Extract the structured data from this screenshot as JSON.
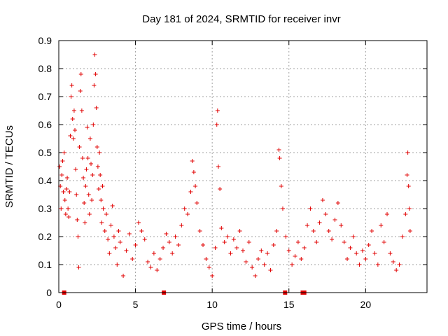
{
  "chart_data": {
    "type": "scatter",
    "title": "Day 181 of 2024, SRMTID for receiver invr",
    "xlabel": "GPS time / hours",
    "ylabel": "SRMTID / TECUs",
    "xlim": [
      0,
      24
    ],
    "ylim": [
      0,
      0.9
    ],
    "x_ticks": [
      "0",
      "5",
      "10",
      "15",
      "20"
    ],
    "x_tick_values": [
      0,
      5,
      10,
      15,
      20
    ],
    "y_ticks": [
      "0",
      "0.1",
      "0.2",
      "0.3",
      "0.4",
      "0.5",
      "0.6",
      "0.7",
      "0.8",
      "0.9"
    ],
    "y_tick_values": [
      0,
      0.1,
      0.2,
      0.3,
      0.4,
      0.5,
      0.6,
      0.7,
      0.8,
      0.9
    ],
    "grid": true,
    "marker": "plus",
    "color": "#e00000",
    "series": [
      {
        "name": "SRMTID",
        "points": [
          [
            0.05,
            0.45
          ],
          [
            0.1,
            0.38
          ],
          [
            0.15,
            0.3
          ],
          [
            0.2,
            0.42
          ],
          [
            0.25,
            0.47
          ],
          [
            0.3,
            0.36
          ],
          [
            0.35,
            0.5
          ],
          [
            0.4,
            0.33
          ],
          [
            0.45,
            0.28
          ],
          [
            0.5,
            0.37
          ],
          [
            0.55,
            0.41
          ],
          [
            0.6,
            0.3
          ],
          [
            0.65,
            0.27
          ],
          [
            0.7,
            0.36
          ],
          [
            0.75,
            0.56
          ],
          [
            0.8,
            0.7
          ],
          [
            0.85,
            0.74
          ],
          [
            0.9,
            0.62
          ],
          [
            0.95,
            0.55
          ],
          [
            1.0,
            0.65
          ],
          [
            1.05,
            0.58
          ],
          [
            1.1,
            0.44
          ],
          [
            1.15,
            0.35
          ],
          [
            1.2,
            0.26
          ],
          [
            1.25,
            0.2
          ],
          [
            1.3,
            0.09
          ],
          [
            1.35,
            0.52
          ],
          [
            1.4,
            0.72
          ],
          [
            1.45,
            0.78
          ],
          [
            1.5,
            0.65
          ],
          [
            1.55,
            0.48
          ],
          [
            1.6,
            0.41
          ],
          [
            1.65,
            0.32
          ],
          [
            1.7,
            0.25
          ],
          [
            1.75,
            0.38
          ],
          [
            1.8,
            0.44
          ],
          [
            1.85,
            0.59
          ],
          [
            1.9,
            0.48
          ],
          [
            1.95,
            0.35
          ],
          [
            2.0,
            0.28
          ],
          [
            2.05,
            0.55
          ],
          [
            2.1,
            0.46
          ],
          [
            2.15,
            0.33
          ],
          [
            2.2,
            0.42
          ],
          [
            2.25,
            0.6
          ],
          [
            2.3,
            0.74
          ],
          [
            2.35,
            0.85
          ],
          [
            2.4,
            0.78
          ],
          [
            2.45,
            0.66
          ],
          [
            2.5,
            0.52
          ],
          [
            2.55,
            0.45
          ],
          [
            2.6,
            0.37
          ],
          [
            2.65,
            0.5
          ],
          [
            2.7,
            0.42
          ],
          [
            2.75,
            0.33
          ],
          [
            2.8,
            0.25
          ],
          [
            2.85,
            0.38
          ],
          [
            2.9,
            0.3
          ],
          [
            3.0,
            0.22
          ],
          [
            3.1,
            0.28
          ],
          [
            3.2,
            0.19
          ],
          [
            3.3,
            0.14
          ],
          [
            3.4,
            0.24
          ],
          [
            3.5,
            0.31
          ],
          [
            3.6,
            0.2
          ],
          [
            3.7,
            0.16
          ],
          [
            3.8,
            0.1
          ],
          [
            3.9,
            0.22
          ],
          [
            4.0,
            0.18
          ],
          [
            4.2,
            0.06
          ],
          [
            4.4,
            0.15
          ],
          [
            4.6,
            0.21
          ],
          [
            4.8,
            0.12
          ],
          [
            5.0,
            0.17
          ],
          [
            5.2,
            0.25
          ],
          [
            5.4,
            0.22
          ],
          [
            5.6,
            0.19
          ],
          [
            5.8,
            0.11
          ],
          [
            6.0,
            0.09
          ],
          [
            6.2,
            0.14
          ],
          [
            6.4,
            0.08
          ],
          [
            6.6,
            0.12
          ],
          [
            6.8,
            0.16
          ],
          [
            7.0,
            0.21
          ],
          [
            7.2,
            0.18
          ],
          [
            7.4,
            0.14
          ],
          [
            7.6,
            0.2
          ],
          [
            7.8,
            0.17
          ],
          [
            8.0,
            0.24
          ],
          [
            8.2,
            0.3
          ],
          [
            8.4,
            0.28
          ],
          [
            8.6,
            0.36
          ],
          [
            8.7,
            0.47
          ],
          [
            8.8,
            0.43
          ],
          [
            8.9,
            0.38
          ],
          [
            9.0,
            0.32
          ],
          [
            9.2,
            0.22
          ],
          [
            9.4,
            0.17
          ],
          [
            9.6,
            0.12
          ],
          [
            9.8,
            0.09
          ],
          [
            10.0,
            0.06
          ],
          [
            10.2,
            0.16
          ],
          [
            10.3,
            0.6
          ],
          [
            10.35,
            0.65
          ],
          [
            10.4,
            0.45
          ],
          [
            10.5,
            0.37
          ],
          [
            10.6,
            0.23
          ],
          [
            10.8,
            0.18
          ],
          [
            11.0,
            0.2
          ],
          [
            11.2,
            0.14
          ],
          [
            11.4,
            0.19
          ],
          [
            11.6,
            0.16
          ],
          [
            11.8,
            0.22
          ],
          [
            12.0,
            0.15
          ],
          [
            12.2,
            0.11
          ],
          [
            12.4,
            0.18
          ],
          [
            12.6,
            0.09
          ],
          [
            12.8,
            0.06
          ],
          [
            13.0,
            0.12
          ],
          [
            13.2,
            0.15
          ],
          [
            13.4,
            0.1
          ],
          [
            13.6,
            0.14
          ],
          [
            13.8,
            0.08
          ],
          [
            14.0,
            0.17
          ],
          [
            14.2,
            0.22
          ],
          [
            14.35,
            0.51
          ],
          [
            14.4,
            0.48
          ],
          [
            14.5,
            0.38
          ],
          [
            14.6,
            0.3
          ],
          [
            14.8,
            0.2
          ],
          [
            15.0,
            0.15
          ],
          [
            15.2,
            0.1
          ],
          [
            15.4,
            0.13
          ],
          [
            15.6,
            0.18
          ],
          [
            15.8,
            0.12
          ],
          [
            16.0,
            0.16
          ],
          [
            16.2,
            0.24
          ],
          [
            16.4,
            0.3
          ],
          [
            16.6,
            0.22
          ],
          [
            16.8,
            0.18
          ],
          [
            17.0,
            0.25
          ],
          [
            17.2,
            0.33
          ],
          [
            17.4,
            0.28
          ],
          [
            17.6,
            0.22
          ],
          [
            17.8,
            0.19
          ],
          [
            18.0,
            0.26
          ],
          [
            18.2,
            0.32
          ],
          [
            18.4,
            0.24
          ],
          [
            18.6,
            0.18
          ],
          [
            18.8,
            0.12
          ],
          [
            19.0,
            0.16
          ],
          [
            19.2,
            0.2
          ],
          [
            19.4,
            0.14
          ],
          [
            19.6,
            0.1
          ],
          [
            19.8,
            0.15
          ],
          [
            20.0,
            0.12
          ],
          [
            20.2,
            0.17
          ],
          [
            20.4,
            0.22
          ],
          [
            20.6,
            0.14
          ],
          [
            20.8,
            0.1
          ],
          [
            21.0,
            0.24
          ],
          [
            21.2,
            0.18
          ],
          [
            21.4,
            0.28
          ],
          [
            21.6,
            0.14
          ],
          [
            21.8,
            0.11
          ],
          [
            22.0,
            0.08
          ],
          [
            22.2,
            0.1
          ],
          [
            22.4,
            0.2
          ],
          [
            22.6,
            0.28
          ],
          [
            22.7,
            0.42
          ],
          [
            22.75,
            0.5
          ],
          [
            22.8,
            0.38
          ],
          [
            22.85,
            0.3
          ],
          [
            22.9,
            0.22
          ]
        ]
      }
    ],
    "baseline_markers_x": [
      0.35,
      6.85,
      14.75,
      15.9,
      16.0
    ]
  }
}
